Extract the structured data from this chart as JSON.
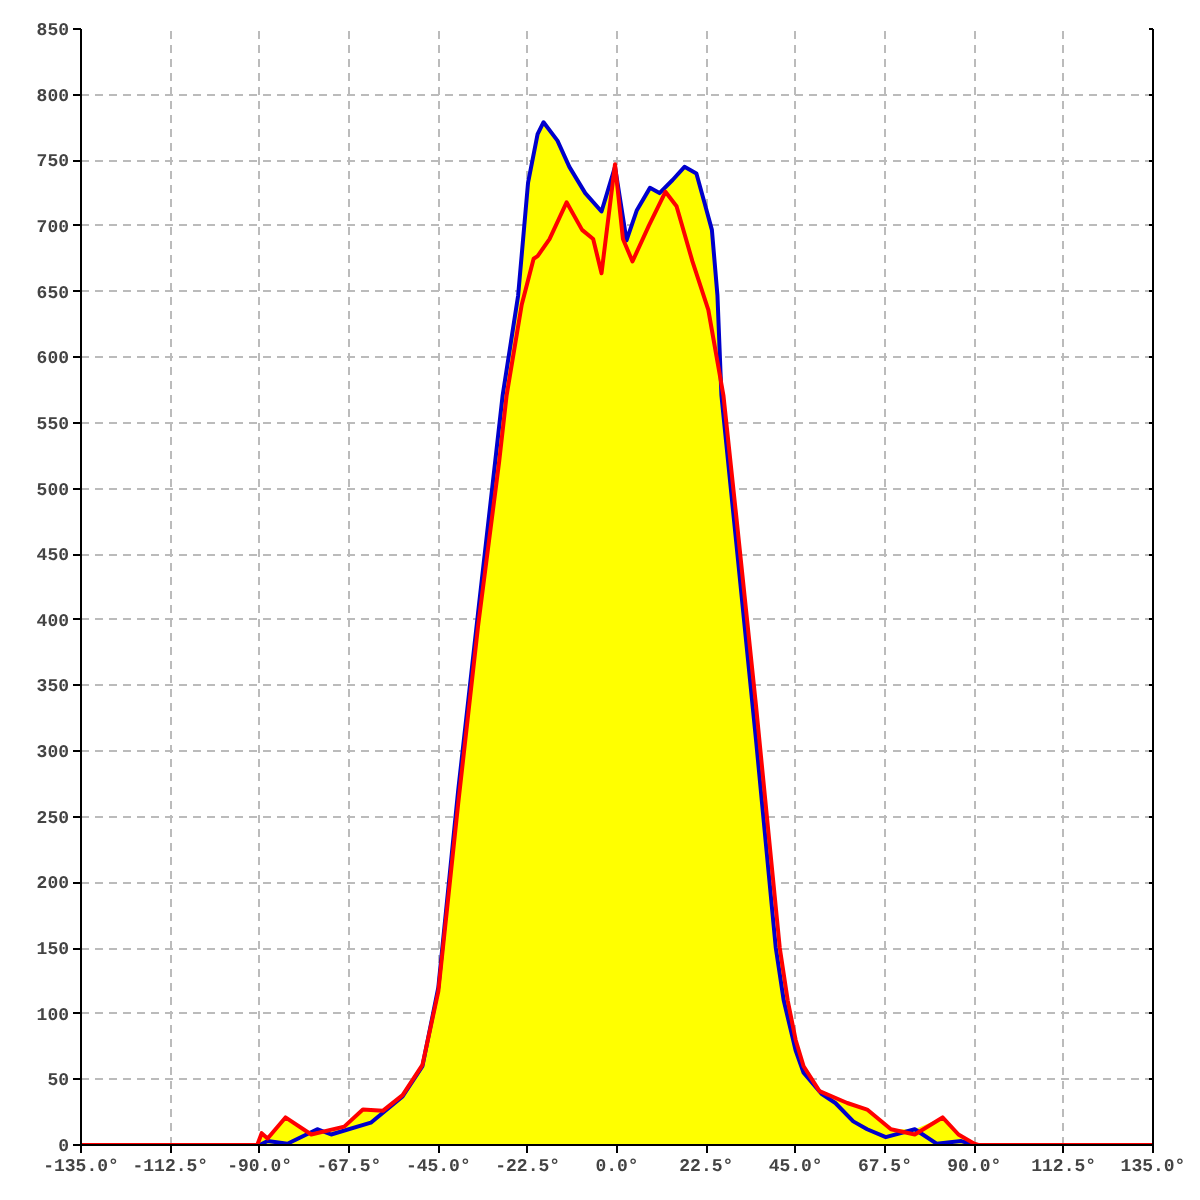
{
  "chart_data": {
    "type": "line",
    "xlim": [
      -135,
      135
    ],
    "ylim": [
      0,
      850
    ],
    "xticks": [
      {
        "value": -135,
        "label": "-135.0°"
      },
      {
        "value": -112.5,
        "label": "-112.5°"
      },
      {
        "value": -90,
        "label": "-90.0°"
      },
      {
        "value": -67.5,
        "label": "-67.5°"
      },
      {
        "value": -45,
        "label": "-45.0°"
      },
      {
        "value": -22.5,
        "label": "-22.5°"
      },
      {
        "value": 0,
        "label": "0.0°"
      },
      {
        "value": 22.5,
        "label": "22.5°"
      },
      {
        "value": 45,
        "label": "45.0°"
      },
      {
        "value": 67.5,
        "label": "67.5°"
      },
      {
        "value": 90,
        "label": "90.0°"
      },
      {
        "value": 112.5,
        "label": "112.5°"
      },
      {
        "value": 135,
        "label": "135.0°"
      }
    ],
    "yticks": [
      0,
      50,
      100,
      150,
      200,
      250,
      300,
      350,
      400,
      450,
      500,
      550,
      600,
      650,
      700,
      750,
      800,
      850
    ],
    "grid": true,
    "series": [
      {
        "type": "area",
        "color": "#ffff00",
        "x": [
          -90.6,
          -89.5,
          -88,
          -83.5,
          -77,
          -75.5,
          -72,
          -68.7,
          -64,
          -59,
          -54,
          -49,
          -45,
          -40,
          -35,
          -30.7,
          -28.8,
          -24.9,
          -22.4,
          -20,
          -18.5,
          -15,
          -12,
          -8,
          -3.9,
          -0.5,
          2.4,
          5,
          8.3,
          10.7,
          14,
          17,
          20,
          22,
          23.9,
          25.3,
          26.8,
          30,
          35,
          40,
          43,
          45,
          47,
          51,
          58,
          63,
          69,
          75,
          82,
          86,
          90,
          91
        ],
        "values": [
          0,
          9,
          5,
          21,
          8,
          12,
          10,
          14,
          27,
          26,
          38,
          61,
          120,
          270,
          405,
          520,
          571,
          647,
          733,
          770,
          779,
          765,
          745,
          725,
          711,
          747,
          689,
          712,
          729,
          725,
          735,
          745,
          740,
          718,
          697,
          647,
          571,
          480,
          335,
          160,
          110,
          80,
          60,
          41,
          32,
          27,
          12,
          12,
          21,
          8,
          1,
          0
        ]
      },
      {
        "color": "#0000cc",
        "x": [
          -90,
          -88,
          -83,
          -75.5,
          -72,
          -62,
          -54,
          -49,
          -45,
          -40,
          -35,
          -30.7,
          -28.8,
          -24.9,
          -22.4,
          -20,
          -18.5,
          -15,
          -12,
          -8,
          -3.9,
          -0.5,
          2.4,
          5,
          8.3,
          10.7,
          14,
          17,
          20,
          22,
          23.9,
          25.3,
          26.3,
          30,
          35,
          40,
          42,
          45,
          47,
          51.5,
          55,
          59.5,
          63,
          67.7,
          75,
          80.5,
          86.7,
          90
        ],
        "values": [
          0,
          3,
          1,
          12,
          8,
          17,
          37,
          60,
          120,
          270,
          405,
          520,
          571,
          647,
          733,
          770,
          779,
          765,
          745,
          725,
          711,
          745,
          689,
          712,
          729,
          725,
          735,
          745,
          740,
          718,
          697,
          647,
          571,
          460,
          309,
          150,
          110,
          72,
          55,
          39,
          32,
          18,
          12,
          6,
          12,
          1,
          3,
          0
        ]
      },
      {
        "color": "#ff0000",
        "x": [
          -135,
          -90.6,
          -89.5,
          -88,
          -83.5,
          -77,
          -68.7,
          -64,
          -59,
          -54,
          -49,
          -45,
          -40,
          -35,
          -29.7,
          -27.8,
          -24,
          -21,
          -20,
          -17,
          -12.7,
          -8.8,
          -6,
          -3.9,
          -0.5,
          1.5,
          3.9,
          8,
          12.2,
          15,
          19,
          23,
          26.8,
          30,
          35,
          41,
          43,
          45,
          47,
          51,
          58,
          63,
          69,
          75,
          82,
          86,
          90,
          91,
          135
        ],
        "values": [
          0,
          0,
          9,
          5,
          21,
          8,
          14,
          27,
          26,
          38,
          61,
          117,
          260,
          395,
          520,
          571,
          640,
          675,
          677,
          690,
          718,
          697,
          690,
          664,
          747,
          690,
          673,
          700,
          726,
          715,
          673,
          636,
          571,
          480,
          335,
          150,
          110,
          80,
          60,
          41,
          32,
          27,
          12,
          8,
          21,
          8,
          1,
          0,
          0
        ]
      }
    ]
  }
}
